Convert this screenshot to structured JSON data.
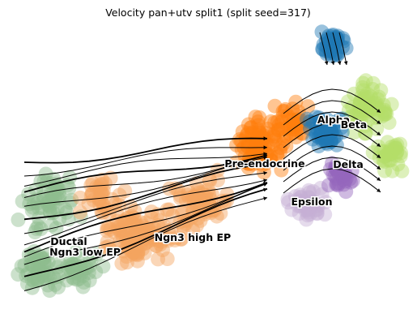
{
  "chart_data": {
    "type": "scatter",
    "title": "Velocity pan+utv split1 (split seed=317)",
    "xlabel": "",
    "ylabel": "",
    "grid": false,
    "legend": "on data",
    "clusters": [
      {
        "name": "Ductal",
        "color": "#8fbc8f"
      },
      {
        "name": "Ngn3 low EP",
        "color": "#8fbc8f"
      },
      {
        "name": "Ngn3 high EP",
        "color": "#f4a460"
      },
      {
        "name": "Pre-endocrine",
        "color": "#ff7f0e"
      },
      {
        "name": "Alpha",
        "color": "#1f77b4"
      },
      {
        "name": "Beta",
        "color": "#b3de69"
      },
      {
        "name": "Delta",
        "color": "#9467bd"
      },
      {
        "name": "Epsilon",
        "color": "#c5b0d5"
      }
    ]
  }
}
